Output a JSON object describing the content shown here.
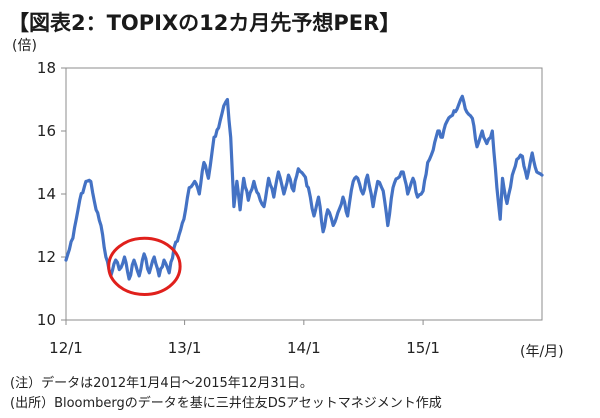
{
  "chart_data": {
    "type": "line",
    "title": "【図表2：TOPIXの12カ月先予想PER】",
    "ylabel": "(倍)",
    "xlabel": "(年/月)",
    "ylim": [
      10,
      18
    ],
    "yticks": [
      "10",
      "12",
      "14",
      "16",
      "18"
    ],
    "xlim": [
      "2012-01-04",
      "2015-12-31"
    ],
    "xticks": [
      {
        "label": "12/1",
        "date": "2012-01-01"
      },
      {
        "label": "13/1",
        "date": "2013-01-01"
      },
      {
        "label": "14/1",
        "date": "2014-01-01"
      },
      {
        "label": "15/1",
        "date": "2015-01-01"
      }
    ],
    "grid": false,
    "line_color": "#4472c4",
    "highlight_color": "#e0201c",
    "annotations": [
      {
        "shape": "ellipse",
        "x_range": [
          "2012-06-01",
          "2012-11-30"
        ],
        "y_range": [
          11.0,
          12.4
        ],
        "color": "#e0201c"
      }
    ],
    "series": [
      {
        "x": [
          "2012-01-04",
          "2012-01-25",
          "2012-02-15",
          "2012-03-05",
          "2012-03-20",
          "2012-04-05",
          "2012-04-20",
          "2012-05-05",
          "2012-05-20",
          "2012-06-04",
          "2012-06-15",
          "2012-07-01",
          "2012-07-15",
          "2012-07-30",
          "2012-08-15",
          "2012-08-30",
          "2012-09-15",
          "2012-09-30",
          "2012-10-15",
          "2012-10-30",
          "2012-11-15",
          "2012-11-30",
          "2012-12-15",
          "2012-12-30",
          "2013-01-15",
          "2013-02-01",
          "2013-02-15",
          "2013-03-01",
          "2013-03-15",
          "2013-04-01",
          "2013-04-15",
          "2013-05-01",
          "2013-05-12",
          "2013-05-22",
          "2013-06-01",
          "2013-06-10",
          "2013-06-20",
          "2013-07-01",
          "2013-07-15",
          "2013-08-01",
          "2013-08-15",
          "2013-09-01",
          "2013-09-15",
          "2013-10-01",
          "2013-10-15",
          "2013-11-01",
          "2013-11-15",
          "2013-12-01",
          "2013-12-15",
          "2014-01-01",
          "2014-01-15",
          "2014-02-01",
          "2014-02-15",
          "2014-03-01",
          "2014-03-15",
          "2014-04-01",
          "2014-04-15",
          "2014-05-01",
          "2014-05-15",
          "2014-06-01",
          "2014-06-15",
          "2014-07-01",
          "2014-07-15",
          "2014-08-01",
          "2014-08-15",
          "2014-09-01",
          "2014-09-15",
          "2014-10-01",
          "2014-10-15",
          "2014-11-01",
          "2014-11-15",
          "2014-12-01",
          "2014-12-15",
          "2015-01-01",
          "2015-01-15",
          "2015-02-01",
          "2015-02-15",
          "2015-03-01",
          "2015-03-15",
          "2015-04-01",
          "2015-04-15",
          "2015-05-01",
          "2015-05-15",
          "2015-06-01",
          "2015-06-15",
          "2015-07-01",
          "2015-07-15",
          "2015-08-01",
          "2015-08-15",
          "2015-08-25",
          "2015-09-01",
          "2015-09-15",
          "2015-10-01",
          "2015-10-15",
          "2015-11-01",
          "2015-11-15",
          "2015-12-01",
          "2015-12-15",
          "2015-12-31"
        ],
        "values": [
          11.9,
          12.6,
          13.8,
          14.4,
          14.4,
          13.5,
          13.0,
          12.0,
          11.4,
          11.9,
          11.6,
          12.0,
          11.3,
          11.9,
          11.4,
          12.1,
          11.5,
          12.0,
          11.4,
          11.9,
          11.5,
          12.3,
          12.7,
          13.2,
          14.2,
          14.4,
          14.0,
          15.0,
          14.5,
          15.8,
          16.1,
          16.8,
          17.0,
          15.8,
          13.6,
          14.4,
          13.5,
          14.5,
          13.8,
          14.4,
          14.0,
          13.6,
          14.5,
          13.9,
          14.7,
          14.0,
          14.6,
          14.1,
          14.8,
          14.6,
          14.2,
          13.3,
          13.9,
          12.8,
          13.5,
          13.0,
          13.4,
          13.9,
          13.3,
          14.4,
          14.5,
          14.0,
          14.6,
          13.6,
          14.4,
          14.1,
          13.0,
          14.2,
          14.5,
          14.7,
          14.0,
          14.5,
          13.9,
          14.1,
          15.0,
          15.4,
          16.0,
          15.8,
          16.3,
          16.5,
          16.7,
          17.1,
          16.6,
          16.4,
          15.5,
          16.0,
          15.6,
          16.0,
          14.2,
          13.2,
          14.5,
          13.7,
          14.6,
          15.1,
          15.2,
          14.5,
          15.3,
          14.7,
          14.6
        ]
      }
    ]
  },
  "footnotes": {
    "note": "(注）データは2012年1月4日～2015年12月31日。",
    "source": "(出所）Bloombergのデータを基に三井住友DSアセットマネジメント作成"
  }
}
